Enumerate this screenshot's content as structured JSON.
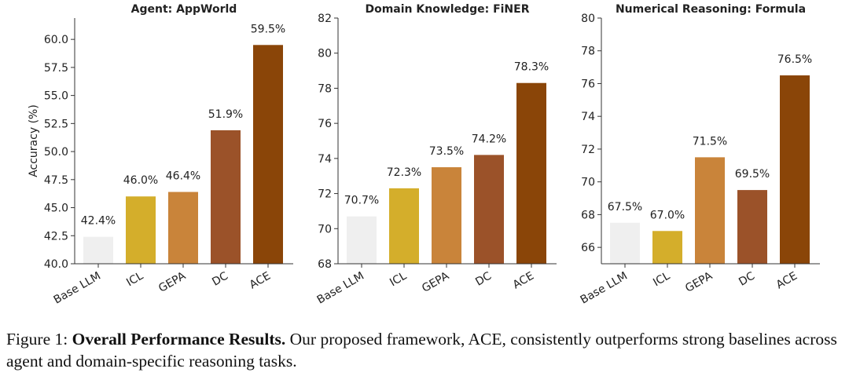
{
  "chart_data": [
    {
      "type": "bar",
      "title": "Agent: AppWorld",
      "ylabel": "Accuracy (%)",
      "categories": [
        "Base LLM",
        "ICL",
        "GEPA",
        "DC",
        "ACE"
      ],
      "values": [
        42.4,
        46.0,
        46.4,
        51.9,
        59.5
      ],
      "value_labels": [
        "42.4%",
        "46.0%",
        "46.4%",
        "51.9%",
        "59.5%"
      ],
      "colors": [
        "#efefef",
        "#d4ae2b",
        "#c9843a",
        "#9b5229",
        "#8a4508"
      ],
      "ylim": [
        40,
        61.9
      ],
      "yticks": [
        {
          "value": 40,
          "label": "40.0"
        },
        42.5,
        {
          "value": 45,
          "label": "45.0"
        },
        47.5,
        {
          "value": 50,
          "label": "50.0"
        },
        52.5,
        {
          "value": 55,
          "label": "55.0"
        },
        57.5,
        {
          "value": 60,
          "label": "60.0"
        }
      ]
    },
    {
      "type": "bar",
      "title": "Domain Knowledge: FiNER",
      "categories": [
        "Base LLM",
        "ICL",
        "GEPA",
        "DC",
        "ACE"
      ],
      "values": [
        70.7,
        72.3,
        73.5,
        74.2,
        78.3
      ],
      "value_labels": [
        "70.7%",
        "72.3%",
        "73.5%",
        "74.2%",
        "78.3%"
      ],
      "colors": [
        "#efefef",
        "#d4ae2b",
        "#c9843a",
        "#9b5229",
        "#8a4508"
      ],
      "ylim": [
        68,
        82
      ],
      "yticks": [
        68,
        70,
        72,
        74,
        76,
        78,
        80,
        82
      ]
    },
    {
      "type": "bar",
      "title": "Numerical Reasoning: Formula",
      "categories": [
        "Base LLM",
        "ICL",
        "GEPA",
        "DC",
        "ACE"
      ],
      "values": [
        67.5,
        67.0,
        71.5,
        69.5,
        76.5
      ],
      "value_labels": [
        "67.5%",
        "67.0%",
        "71.5%",
        "69.5%",
        "76.5%"
      ],
      "colors": [
        "#efefef",
        "#d4ae2b",
        "#c9843a",
        "#9b5229",
        "#8a4508"
      ],
      "ylim": [
        65,
        80
      ],
      "yticks": [
        66,
        68,
        70,
        72,
        74,
        76,
        78,
        80
      ]
    }
  ],
  "caption": {
    "label": "Figure 1:",
    "bold": "Overall Performance Results.",
    "text": "Our proposed framework, ACE, consistently outperforms strong baselines across agent and domain-specific reasoning tasks."
  }
}
